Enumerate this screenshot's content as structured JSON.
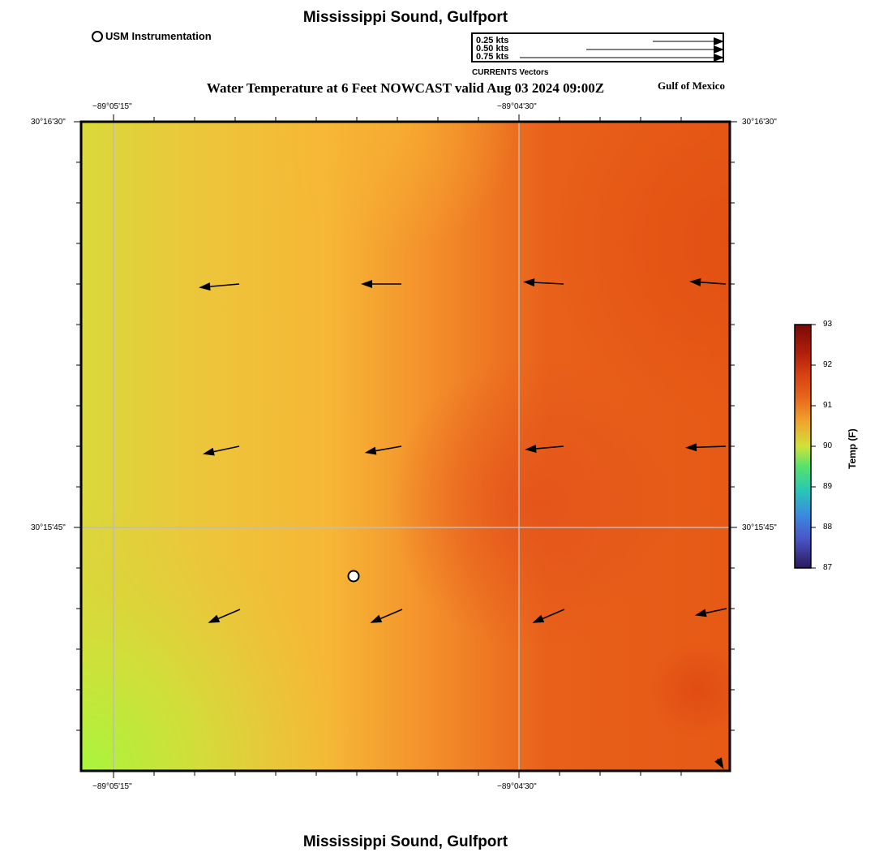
{
  "header": {
    "title": "Mississippi Sound, Gulfport",
    "subtitle": "Water Temperature at 6 Feet NOWCAST valid Aug 03 2024 09:00Z",
    "region": "Gulf of Mexico",
    "footer_title": "Mississippi Sound, Gulfport"
  },
  "legend": {
    "station_label": "USM Instrumentation",
    "vector_scale": [
      "0.25 kts",
      "0.50 kts",
      "0.75 kts"
    ],
    "vector_caption": "CURRENTS Vectors"
  },
  "map": {
    "lon_labels": [
      "−89°05'15\"",
      "−89°04'30\""
    ],
    "lat_labels": [
      "30°16'30\"",
      "30°15'45\""
    ],
    "gradient_colors": [
      "#b2f53c",
      "#d9d93b",
      "#f7b835",
      "#f38c2a",
      "#e65a16"
    ],
    "station": {
      "name": "USM Instrumentation"
    },
    "current_vectors": [
      {
        "speed_kts": 0.5,
        "direction_deg": 265
      },
      {
        "speed_kts": 0.5,
        "direction_deg": 270
      },
      {
        "speed_kts": 0.5,
        "direction_deg": 273
      },
      {
        "speed_kts": 0.45,
        "direction_deg": 274
      },
      {
        "speed_kts": 0.46,
        "direction_deg": 258
      },
      {
        "speed_kts": 0.46,
        "direction_deg": 260
      },
      {
        "speed_kts": 0.48,
        "direction_deg": 265
      },
      {
        "speed_kts": 0.5,
        "direction_deg": 268
      },
      {
        "speed_kts": 0.43,
        "direction_deg": 247
      },
      {
        "speed_kts": 0.43,
        "direction_deg": 247
      },
      {
        "speed_kts": 0.43,
        "direction_deg": 247
      },
      {
        "speed_kts": 0.4,
        "direction_deg": 258
      },
      {
        "speed_kts": 0.15,
        "direction_deg": 150
      }
    ]
  },
  "colorbar": {
    "title": "Temp (F)",
    "ticks": [
      "93",
      "92",
      "91",
      "90",
      "89",
      "88",
      "87"
    ],
    "colors": [
      "#7a0a05",
      "#c0280c",
      "#e65a16",
      "#f38c2a",
      "#e8c235",
      "#a6e23a",
      "#3ae27a",
      "#28c8c8",
      "#3a8be0",
      "#4a55c8",
      "#2a1a5a"
    ]
  }
}
